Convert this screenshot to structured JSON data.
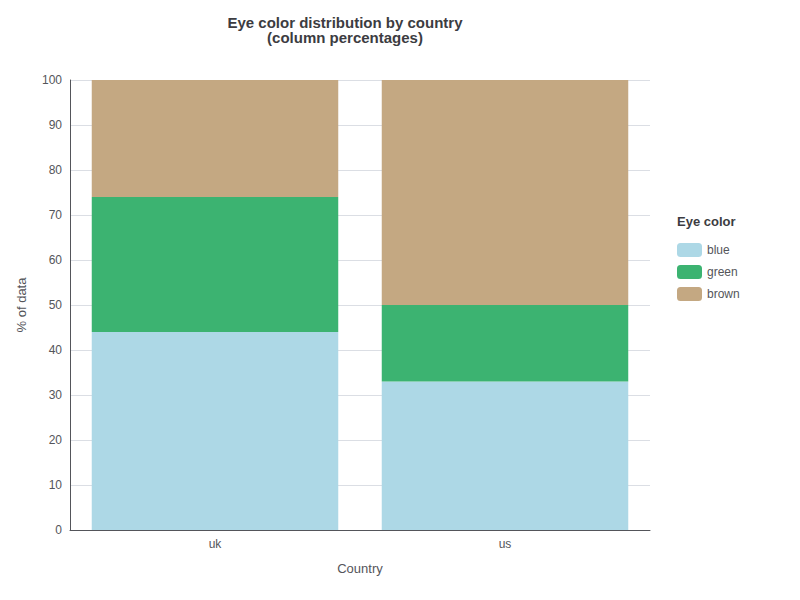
{
  "chart_data": {
    "type": "bar",
    "title": "Eye color distribution by country\n(column percentages)",
    "xlabel": "Country",
    "ylabel": "% of data",
    "categories": [
      "uk",
      "us"
    ],
    "series": [
      {
        "name": "blue",
        "color": "#ADD8E6",
        "values": [
          44,
          33
        ]
      },
      {
        "name": "green",
        "color": "#3CB371",
        "values": [
          30,
          17
        ]
      },
      {
        "name": "brown",
        "color": "#C4A882",
        "values": [
          26,
          50
        ]
      }
    ],
    "stacked": true,
    "ylim": [
      0,
      100
    ],
    "yticks": [
      0,
      10,
      20,
      30,
      40,
      50,
      60,
      70,
      80,
      90,
      100
    ],
    "grid": true,
    "legend": "right",
    "legend_title": "Eye color"
  }
}
